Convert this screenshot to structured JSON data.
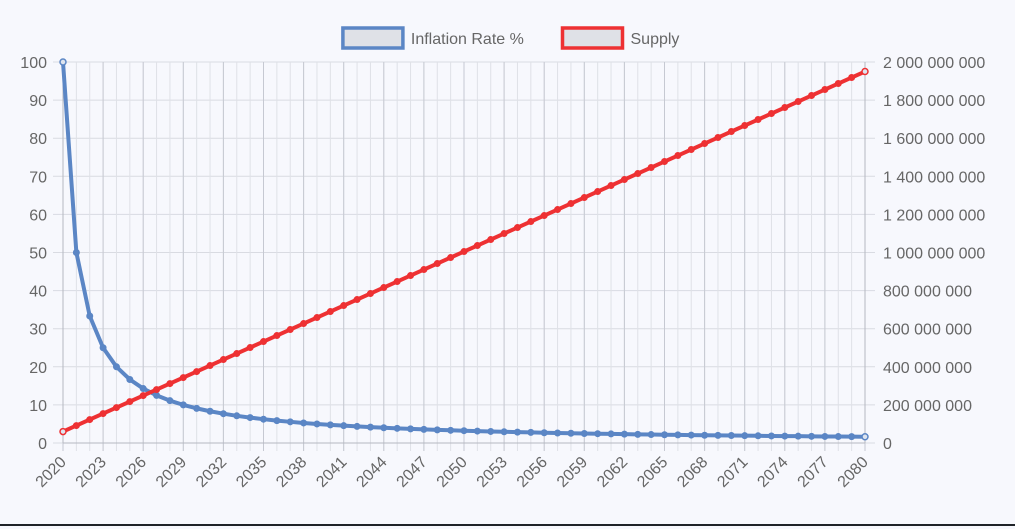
{
  "chart_data": {
    "type": "line",
    "legend": {
      "position": "top",
      "items": [
        {
          "label": "Inflation Rate %",
          "color": "#5b86c5"
        },
        {
          "label": "Supply",
          "color": "#ee3133"
        }
      ]
    },
    "x": {
      "start": 2020,
      "end": 2080,
      "tick_labels": [
        "2020",
        "2023",
        "2026",
        "2029",
        "2032",
        "2035",
        "2038",
        "2041",
        "2044",
        "2047",
        "2050",
        "2053",
        "2056",
        "2059",
        "2062",
        "2065",
        "2068",
        "2071",
        "2074",
        "2077",
        "2080"
      ]
    },
    "y_left": {
      "range": [
        0,
        100
      ],
      "ticks": [
        "0",
        "10",
        "20",
        "30",
        "40",
        "50",
        "60",
        "70",
        "80",
        "90",
        "100"
      ]
    },
    "y_right": {
      "range": [
        0,
        2000000000
      ],
      "ticks": [
        "0",
        "200 000 000",
        "400 000 000",
        "600 000 000",
        "800 000 000",
        "1 000 000 000",
        "1 200 000 000",
        "1 400 000 000",
        "1 600 000 000",
        "1 800 000 000",
        "2 000 000 000"
      ]
    },
    "grid": true,
    "series": [
      {
        "name": "Inflation Rate %",
        "axis": "left",
        "color": "#5b86c5",
        "values": [
          100,
          50,
          33.33,
          25,
          20,
          16.67,
          14.29,
          12.5,
          11.11,
          10,
          9.09,
          8.33,
          7.69,
          7.14,
          6.67,
          6.25,
          5.88,
          5.56,
          5.26,
          5,
          4.76,
          4.55,
          4.35,
          4.17,
          4,
          3.85,
          3.7,
          3.57,
          3.45,
          3.33,
          3.23,
          3.13,
          3.03,
          2.94,
          2.86,
          2.78,
          2.7,
          2.63,
          2.56,
          2.5,
          2.44,
          2.38,
          2.33,
          2.27,
          2.22,
          2.17,
          2.13,
          2.08,
          2.04,
          2,
          1.96,
          1.92,
          1.89,
          1.85,
          1.82,
          1.79,
          1.75,
          1.72,
          1.69,
          1.67,
          1.64
        ]
      },
      {
        "name": "Supply",
        "axis": "right",
        "color": "#ee3133",
        "start": 60000000,
        "step": 31500000
      }
    ]
  }
}
